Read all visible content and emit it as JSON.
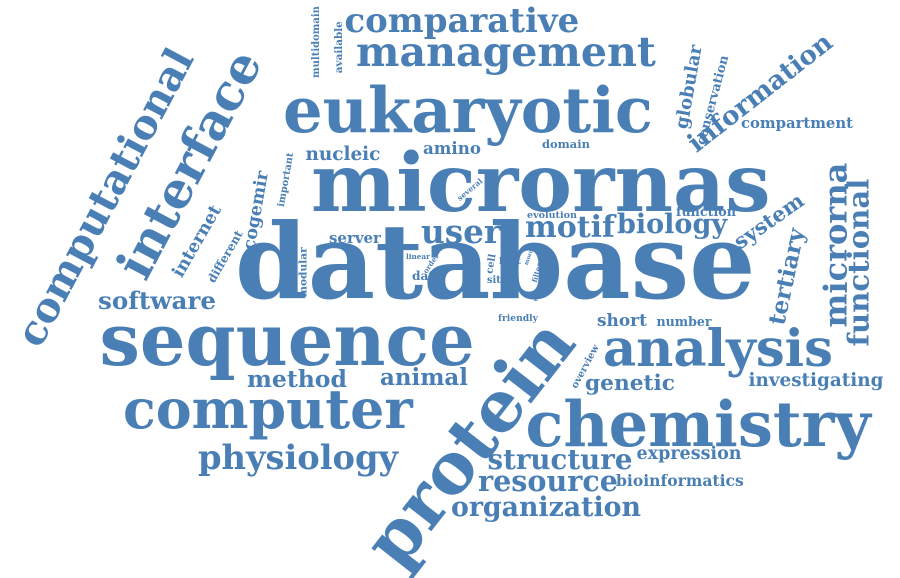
{
  "word_color": "#4a7fb5",
  "background_color": "#ffffff",
  "words": [
    {
      "text": "database",
      "weight": 100
    },
    {
      "text": "micrornas",
      "weight": 86
    },
    {
      "text": "protein",
      "weight": 84
    },
    {
      "text": "sequence",
      "weight": 70
    },
    {
      "text": "eukaryotic",
      "weight": 62
    },
    {
      "text": "computer",
      "weight": 60
    },
    {
      "text": "chemistry",
      "weight": 58
    },
    {
      "text": "computational",
      "weight": 50
    },
    {
      "text": "interface",
      "weight": 50
    },
    {
      "text": "analysis",
      "weight": 48
    },
    {
      "text": "management",
      "weight": 38
    },
    {
      "text": "comparative",
      "weight": 32
    },
    {
      "text": "physiology",
      "weight": 32
    },
    {
      "text": "microrna",
      "weight": 30
    },
    {
      "text": "functional",
      "weight": 28
    },
    {
      "text": "user",
      "weight": 28
    },
    {
      "text": "motif",
      "weight": 28
    },
    {
      "text": "information",
      "weight": 27
    },
    {
      "text": "structure",
      "weight": 26
    },
    {
      "text": "resource",
      "weight": 26
    },
    {
      "text": "organization",
      "weight": 26
    },
    {
      "text": "biology",
      "weight": 25
    },
    {
      "text": "cogemir",
      "weight": 24
    },
    {
      "text": "internet",
      "weight": 22
    },
    {
      "text": "tertiary",
      "weight": 22
    },
    {
      "text": "system",
      "weight": 21
    },
    {
      "text": "software",
      "weight": 21
    },
    {
      "text": "nucleic",
      "weight": 20
    },
    {
      "text": "method",
      "weight": 20
    },
    {
      "text": "animal",
      "weight": 19
    },
    {
      "text": "genetic",
      "weight": 19
    },
    {
      "text": "investigating",
      "weight": 18
    },
    {
      "text": "amino",
      "weight": 18
    },
    {
      "text": "globular",
      "weight": 16
    },
    {
      "text": "expression",
      "weight": 16
    },
    {
      "text": "bioinformatics",
      "weight": 15
    },
    {
      "text": "short",
      "weight": 15
    },
    {
      "text": "server",
      "weight": 14
    },
    {
      "text": "compartment",
      "weight": 14
    },
    {
      "text": "modular",
      "weight": 13
    },
    {
      "text": "different",
      "weight": 13
    },
    {
      "text": "conservation",
      "weight": 12
    },
    {
      "text": "available",
      "weight": 12
    },
    {
      "text": "multidomain",
      "weight": 12
    },
    {
      "text": "function",
      "weight": 12
    },
    {
      "text": "domain",
      "weight": 11
    },
    {
      "text": "evolution",
      "weight": 11
    },
    {
      "text": "number",
      "weight": 11
    },
    {
      "text": "important",
      "weight": 10
    },
    {
      "text": "host",
      "weight": 10
    },
    {
      "text": "cell",
      "weight": 10
    },
    {
      "text": "data",
      "weight": 10
    },
    {
      "text": "friendly",
      "weight": 10
    },
    {
      "text": "overview",
      "weight": 10
    },
    {
      "text": "several",
      "weight": 9
    },
    {
      "text": "linear",
      "weight": 9
    },
    {
      "text": "site",
      "weight": 9
    },
    {
      "text": "order",
      "weight": 8
    },
    {
      "text": "filter",
      "weight": 8
    },
    {
      "text": "collect",
      "weight": 8
    },
    {
      "text": "more",
      "weight": 8
    }
  ]
}
